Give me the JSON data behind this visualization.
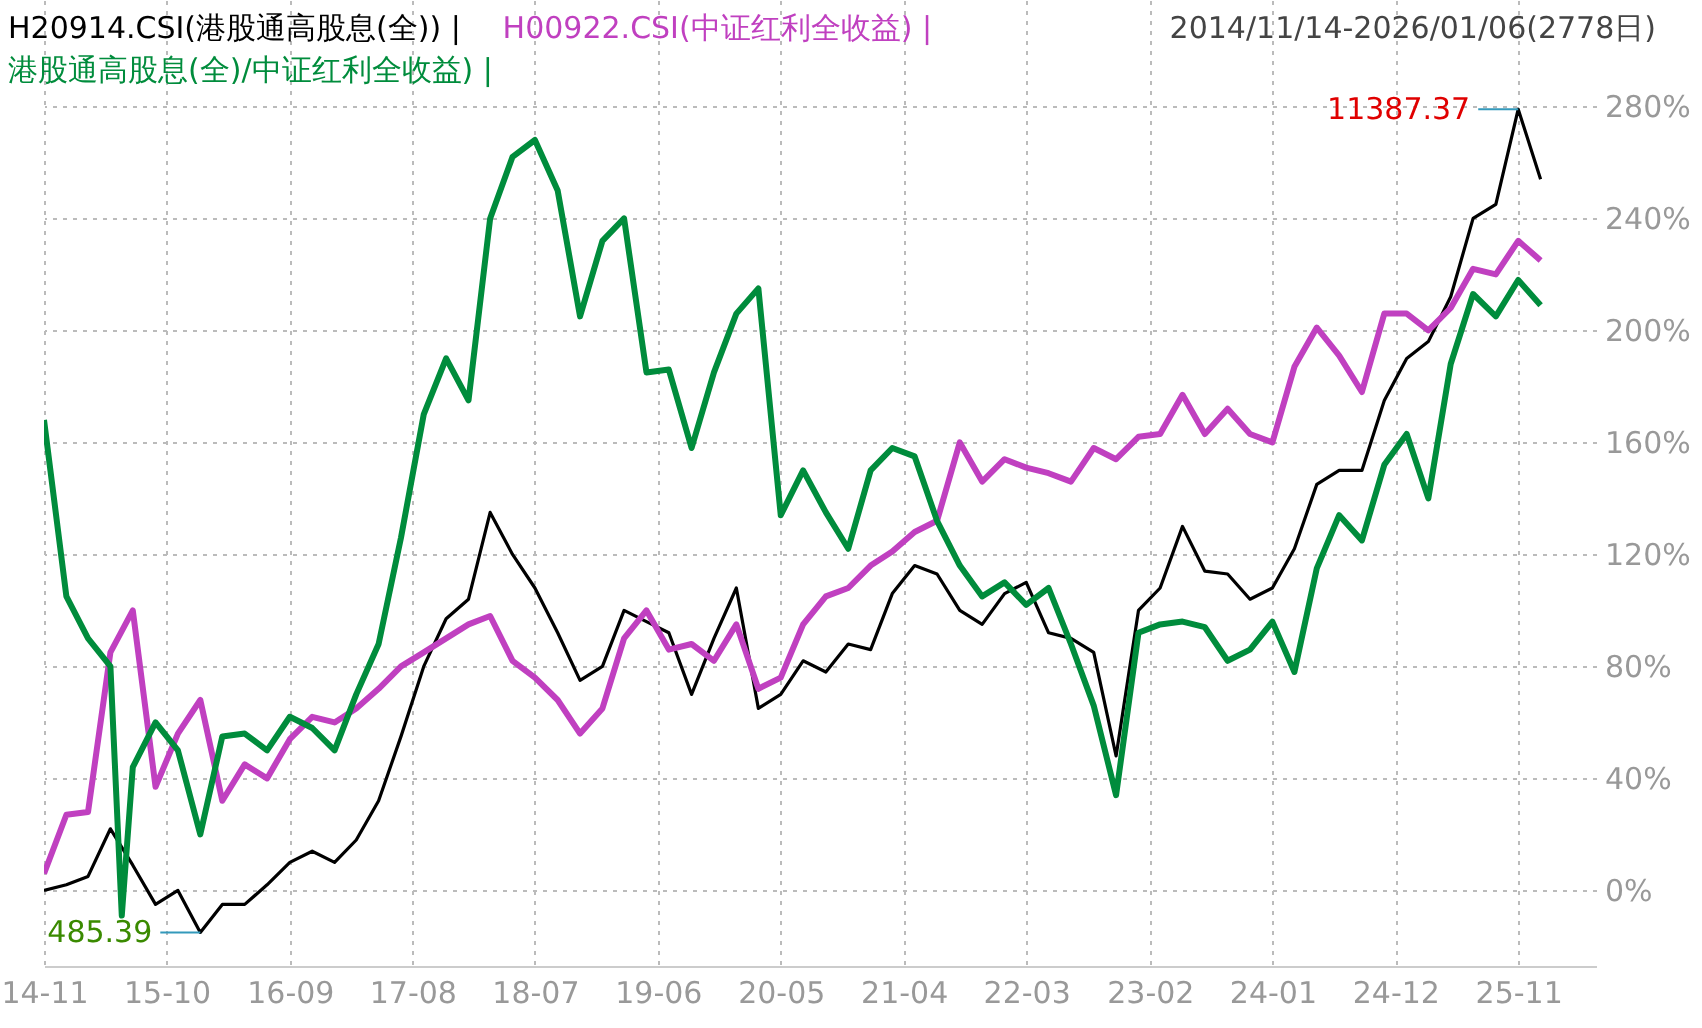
{
  "chart_data": {
    "type": "line",
    "subtitle": "2014/11/14-2026/01/06(2778日)",
    "x": [
      "2014-11",
      "2015-01",
      "2015-03",
      "2015-05",
      "2015-07",
      "2015-09",
      "2015-11",
      "2016-01",
      "2016-03",
      "2016-05",
      "2016-07",
      "2016-09",
      "2016-11",
      "2017-01",
      "2017-03",
      "2017-05",
      "2017-07",
      "2017-09",
      "2017-11",
      "2018-01",
      "2018-03",
      "2018-05",
      "2018-07",
      "2018-09",
      "2018-11",
      "2019-01",
      "2019-03",
      "2019-05",
      "2019-07",
      "2019-09",
      "2019-11",
      "2020-01",
      "2020-03",
      "2020-05",
      "2020-07",
      "2020-09",
      "2020-11",
      "2021-01",
      "2021-03",
      "2021-05",
      "2021-07",
      "2021-09",
      "2021-11",
      "2022-01",
      "2022-03",
      "2022-05",
      "2022-07",
      "2022-09",
      "2022-11",
      "2023-01",
      "2023-03",
      "2023-05",
      "2023-07",
      "2023-09",
      "2023-11",
      "2024-01",
      "2024-03",
      "2024-05",
      "2024-07",
      "2024-09",
      "2024-11",
      "2025-01",
      "2025-03",
      "2025-05",
      "2025-07",
      "2025-09",
      "2025-11",
      "2026-01"
    ],
    "series": [
      {
        "name": "H20914.CSI(港股通高股息(全)) |",
        "color": "#000000",
        "values": [
          0,
          2,
          5,
          22,
          9,
          -5,
          0,
          -15,
          -5,
          -5,
          2,
          10,
          14,
          10,
          18,
          32,
          55,
          80,
          97,
          104,
          135,
          120,
          108,
          92,
          75,
          80,
          100,
          96,
          92,
          70,
          90,
          108,
          65,
          70,
          82,
          78,
          88,
          86,
          106,
          116,
          113,
          100,
          95,
          106,
          110,
          92,
          90,
          85,
          48,
          100,
          108,
          130,
          114,
          113,
          104,
          108,
          122,
          145,
          150,
          150,
          175,
          190,
          196,
          212,
          240,
          245,
          279,
          254
        ]
      },
      {
        "name": "H00922.CSI(中证红利全收益) |",
        "color": "#c040c0",
        "values": [
          6,
          27,
          28,
          85,
          100,
          37,
          56,
          68,
          32,
          45,
          40,
          54,
          62,
          60,
          65,
          72,
          80,
          85,
          90,
          95,
          98,
          82,
          76,
          68,
          56,
          65,
          90,
          100,
          86,
          88,
          82,
          95,
          72,
          76,
          95,
          105,
          108,
          116,
          121,
          128,
          132,
          160,
          146,
          154,
          151,
          149,
          146,
          158,
          154,
          162,
          163,
          177,
          163,
          172,
          163,
          160,
          187,
          201,
          191,
          178,
          206,
          206,
          200,
          208,
          222,
          220,
          232,
          225
        ]
      },
      {
        "name": "港股通高股息(全)/中证红利全收益) |",
        "color": "#008c3c",
        "x": [
          "2014-11",
          "2015-01",
          "2015-03",
          "2015-05",
          "2015-06",
          "2015-07",
          "2015-09",
          "2015-11",
          "2016-01",
          "2016-03",
          "2016-05",
          "2016-07",
          "2016-09",
          "2016-11",
          "2017-01",
          "2017-03",
          "2017-05",
          "2017-07",
          "2017-09",
          "2017-11",
          "2018-01",
          "2018-03",
          "2018-05",
          "2018-07",
          "2018-09",
          "2018-11",
          "2019-01",
          "2019-03",
          "2019-05",
          "2019-07",
          "2019-09",
          "2019-11",
          "2020-01",
          "2020-03",
          "2020-05",
          "2020-07",
          "2020-09",
          "2020-11",
          "2021-01",
          "2021-03",
          "2021-05",
          "2021-07",
          "2021-09",
          "2021-11",
          "2022-01",
          "2022-03",
          "2022-05",
          "2022-07",
          "2022-09",
          "2022-11",
          "2023-01",
          "2023-03",
          "2023-05",
          "2023-07",
          "2023-09",
          "2023-11",
          "2024-01",
          "2024-03",
          "2024-05",
          "2024-07",
          "2024-09",
          "2024-11",
          "2025-01",
          "2025-03",
          "2025-05",
          "2025-07",
          "2025-09",
          "2025-11",
          "2026-01"
        ],
        "values": [
          168,
          105,
          90,
          80,
          -9,
          44,
          60,
          50,
          20,
          55,
          56,
          50,
          62,
          58,
          50,
          70,
          88,
          126,
          170,
          190,
          175,
          240,
          262,
          268,
          250,
          205,
          232,
          240,
          185,
          186,
          158,
          185,
          206,
          215,
          134,
          150,
          135,
          122,
          150,
          158,
          155,
          132,
          116,
          105,
          110,
          102,
          108,
          88,
          66,
          34,
          92,
          95,
          96,
          94,
          82,
          86,
          96,
          78,
          115,
          134,
          125,
          152,
          163,
          140,
          188,
          213,
          205,
          218,
          209
        ]
      }
    ],
    "annotations": [
      {
        "text": "11387.37",
        "x": "2025-11",
        "y": 279
      },
      {
        "text": "485.39",
        "x": "2016-01",
        "y": -15
      }
    ],
    "xlim": [
      "2014-11",
      "2026-06"
    ],
    "xticks": [
      {
        "value": "2014-11",
        "label": "14-11"
      },
      {
        "value": "2015-10",
        "label": "15-10"
      },
      {
        "value": "2016-09",
        "label": "16-09"
      },
      {
        "value": "2017-08",
        "label": "17-08"
      },
      {
        "value": "2018-07",
        "label": "18-07"
      },
      {
        "value": "2019-06",
        "label": "19-06"
      },
      {
        "value": "2020-05",
        "label": "20-05"
      },
      {
        "value": "2021-04",
        "label": "21-04"
      },
      {
        "value": "2022-03",
        "label": "22-03"
      },
      {
        "value": "2023-02",
        "label": "23-02"
      },
      {
        "value": "2024-01",
        "label": "24-01"
      },
      {
        "value": "2024-12",
        "label": "24-12"
      },
      {
        "value": "2025-11",
        "label": "25-11"
      }
    ],
    "ylim": [
      -27,
      318
    ],
    "yticks": [
      {
        "value": 0,
        "label": "0%"
      },
      {
        "value": 40,
        "label": "40%"
      },
      {
        "value": 80,
        "label": "80%"
      },
      {
        "value": 120,
        "label": "120%"
      },
      {
        "value": 160,
        "label": "160%"
      },
      {
        "value": 200,
        "label": "200%"
      },
      {
        "value": 240,
        "label": "240%"
      },
      {
        "value": 280,
        "label": "280%"
      }
    ],
    "grid": true,
    "legend": "top left",
    "line_style": "solid"
  }
}
